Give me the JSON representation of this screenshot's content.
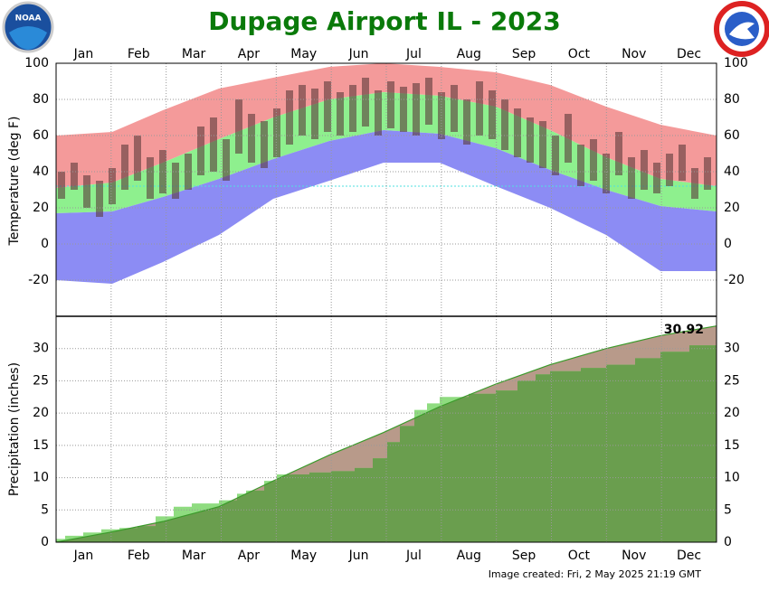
{
  "title": "Dupage Airport IL - 2023",
  "footer": "Image created: Fri, 2 May 2025 21:19 GMT",
  "logo_text": "NOAA",
  "chart_data": [
    {
      "type": "temperature",
      "y_label": "Temperature (deg F)",
      "categories": [
        "Jan",
        "Feb",
        "Mar",
        "Apr",
        "May",
        "Jun",
        "Jul",
        "Aug",
        "Sep",
        "Oct",
        "Nov",
        "Dec"
      ],
      "xlim": [
        0,
        365
      ],
      "ylim": [
        -40,
        100
      ],
      "yticks": [
        -20,
        0,
        20,
        40,
        60,
        80,
        100
      ],
      "grid": true,
      "band_x": [
        0,
        31,
        59,
        90,
        120,
        151,
        181,
        212,
        243,
        273,
        304,
        334,
        365
      ],
      "record_high": [
        60,
        62,
        74,
        86,
        92,
        98,
        100,
        98,
        95,
        88,
        76,
        66,
        60
      ],
      "normal_high": [
        31,
        34,
        45,
        58,
        70,
        80,
        84,
        82,
        76,
        63,
        48,
        36,
        32
      ],
      "normal_low": [
        17,
        18,
        26,
        36,
        47,
        57,
        63,
        61,
        53,
        41,
        30,
        21,
        18
      ],
      "record_low": [
        -20,
        -22,
        -10,
        5,
        25,
        35,
        45,
        45,
        32,
        20,
        5,
        -15,
        -15
      ],
      "record_high_color": "#f49a9a",
      "normal_color": "#8ef08e",
      "record_low_color": "#8c8cf4",
      "freezing_line": 32,
      "freezing_color": "#4fe0e0",
      "x": [
        3,
        10,
        17,
        24,
        31,
        38,
        45,
        52,
        59,
        66,
        73,
        80,
        87,
        94,
        101,
        108,
        115,
        122,
        129,
        136,
        143,
        150,
        157,
        164,
        171,
        178,
        185,
        192,
        199,
        206,
        213,
        220,
        227,
        234,
        241,
        248,
        255,
        262,
        269,
        276,
        283,
        290,
        297,
        304,
        311,
        318,
        325,
        332,
        339,
        346,
        353,
        360
      ],
      "observed_high": [
        40,
        45,
        38,
        35,
        42,
        55,
        60,
        48,
        52,
        45,
        50,
        65,
        70,
        58,
        80,
        72,
        68,
        75,
        85,
        88,
        86,
        90,
        84,
        88,
        92,
        85,
        90,
        87,
        89,
        92,
        84,
        88,
        80,
        90,
        85,
        80,
        75,
        70,
        68,
        60,
        72,
        55,
        58,
        50,
        62,
        48,
        52,
        45,
        50,
        55,
        42,
        48
      ],
      "observed_low": [
        25,
        30,
        20,
        15,
        22,
        30,
        35,
        25,
        28,
        25,
        30,
        38,
        40,
        35,
        50,
        45,
        42,
        48,
        55,
        60,
        58,
        62,
        60,
        62,
        65,
        60,
        64,
        62,
        60,
        66,
        58,
        62,
        55,
        60,
        58,
        52,
        48,
        45,
        42,
        38,
        45,
        32,
        35,
        28,
        38,
        25,
        30,
        28,
        32,
        35,
        25,
        30
      ],
      "observed_color": "#5a3a3a"
    },
    {
      "type": "precipitation",
      "y_label": "Precipitation (inches)",
      "categories": [
        "Jan",
        "Feb",
        "Mar",
        "Apr",
        "May",
        "Jun",
        "Jul",
        "Aug",
        "Sep",
        "Oct",
        "Nov",
        "Dec"
      ],
      "xlim": [
        0,
        365
      ],
      "ylim": [
        0,
        35
      ],
      "yticks": [
        0,
        5,
        10,
        15,
        20,
        25,
        30
      ],
      "grid": true,
      "normal_x": [
        0,
        31,
        59,
        90,
        120,
        151,
        181,
        212,
        243,
        273,
        304,
        334,
        365
      ],
      "normal": [
        0,
        1.6,
        3.2,
        5.5,
        9.5,
        13.5,
        17,
        21,
        24.5,
        27.5,
        30,
        32,
        33.5
      ],
      "normal_color": "#b89a8a",
      "normal_line_color": "#3a9a2a",
      "x": [
        0,
        5,
        15,
        25,
        35,
        45,
        55,
        65,
        75,
        90,
        100,
        105,
        115,
        122,
        140,
        152,
        165,
        175,
        183,
        190,
        198,
        205,
        212,
        228,
        243,
        255,
        265,
        273,
        290,
        304,
        320,
        334,
        350,
        365
      ],
      "values": [
        0.5,
        1.0,
        1.5,
        2.0,
        2.2,
        2.5,
        4.0,
        5.5,
        6.0,
        6.5,
        7.5,
        8.0,
        9.5,
        10.5,
        10.8,
        11.0,
        11.5,
        13.0,
        15.5,
        18.0,
        20.5,
        21.5,
        22.5,
        23.0,
        23.5,
        25.0,
        26.0,
        26.5,
        27.0,
        27.5,
        28.5,
        29.5,
        30.5,
        30.92
      ],
      "above_color": "#8fdc80",
      "below_color": "#6a9e4e"
    }
  ]
}
